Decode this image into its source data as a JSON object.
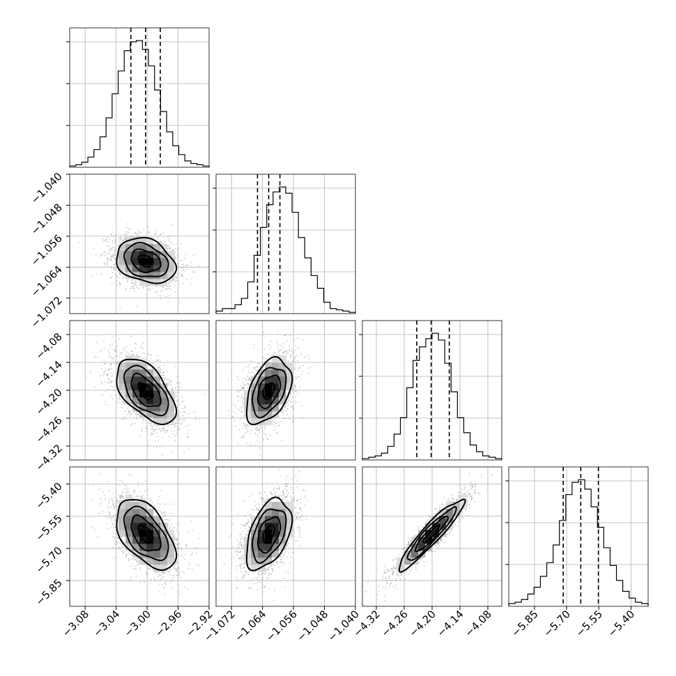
{
  "chart_data": {
    "type": "corner",
    "title": "",
    "grid": true,
    "quantiles": [
      0.16,
      0.5,
      0.84
    ],
    "contour_levels": 4,
    "params": [
      {
        "range": [
          -3.1,
          -2.92
        ],
        "ticks": [
          -3.08,
          -3.04,
          -3.0,
          -2.96,
          -2.92
        ],
        "tick_labels": [
          "−3.08",
          "−3.04",
          "−3.00",
          "−2.96",
          "−2.92"
        ],
        "median": -3.002,
        "q16": -3.021,
        "q84": -2.983,
        "hist_counts": [
          1,
          2,
          4,
          8,
          14,
          24,
          39,
          58,
          76,
          92,
          99,
          100,
          93,
          80,
          61,
          44,
          28,
          17,
          10,
          5,
          3,
          2,
          1
        ],
        "y_ticks_frac": [
          0.3,
          0.6,
          0.9
        ]
      },
      {
        "range": [
          -1.076,
          -1.04
        ],
        "ticks": [
          -1.072,
          -1.064,
          -1.056,
          -1.048,
          -1.04
        ],
        "tick_labels": [
          "−1.072",
          "−1.064",
          "−1.056",
          "−1.048",
          "−1.040"
        ],
        "median": -1.0624,
        "q16": -1.0653,
        "q84": -1.0595,
        "hist_counts": [
          2,
          4,
          4,
          7,
          12,
          25,
          46,
          68,
          86,
          96,
          100,
          95,
          80,
          60,
          44,
          30,
          20,
          9,
          4,
          3,
          2,
          1
        ],
        "y_ticks_frac": [
          0.3,
          0.6,
          0.9
        ]
      },
      {
        "range": [
          -4.35,
          -4.05
        ],
        "ticks": [
          -4.32,
          -4.26,
          -4.2,
          -4.14,
          -4.08
        ],
        "tick_labels": [
          "−4.32",
          "−4.26",
          "−4.20",
          "−4.14",
          "−4.08"
        ],
        "median": -4.202,
        "q16": -4.233,
        "q84": -4.163,
        "hist_counts": [
          1,
          2,
          3,
          5,
          10,
          19,
          31,
          53,
          73,
          83,
          89,
          93,
          88,
          71,
          50,
          31,
          20,
          11,
          6,
          3,
          2,
          1
        ],
        "y_ticks_frac": [
          0.3,
          0.6,
          0.9
        ]
      },
      {
        "range": [
          -5.97,
          -5.32
        ],
        "ticks": [
          -5.85,
          -5.7,
          -5.55,
          -5.4
        ],
        "tick_labels": [
          "−5.85",
          "−5.70",
          "−5.55",
          "−5.40"
        ],
        "median": -5.634,
        "q16": -5.716,
        "q84": -5.552,
        "hist_counts": [
          2,
          3,
          5,
          9,
          14,
          22,
          32,
          45,
          63,
          82,
          91,
          93,
          86,
          73,
          58,
          43,
          30,
          19,
          11,
          6,
          3,
          2
        ],
        "y_ticks_frac": [
          0.3,
          0.6,
          0.9
        ]
      }
    ],
    "correlations": {
      "1-0": -0.25,
      "2-0": -0.55,
      "2-1": 0.42,
      "3-0": -0.52,
      "3-1": 0.45,
      "3-2": 0.93
    }
  }
}
